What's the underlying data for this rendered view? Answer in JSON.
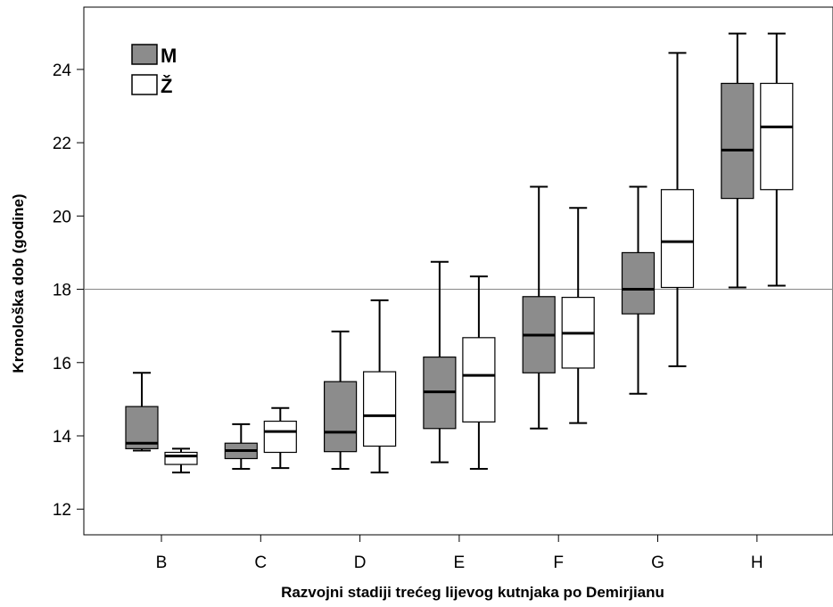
{
  "chart_data": {
    "type": "boxplot",
    "xlabel": "Razvojni stadiji trećeg lijevog kutnjaka po Demirjianu",
    "ylabel": "Kronološka dob (godine)",
    "ylim": [
      11.3,
      25.7
    ],
    "yticks": [
      12,
      14,
      16,
      18,
      20,
      22,
      24
    ],
    "reference_line": 18,
    "legend_position": "top-left",
    "categories": [
      "B",
      "C",
      "D",
      "E",
      "F",
      "G",
      "H"
    ],
    "series": [
      {
        "name": "M",
        "color": "#8c8c8c",
        "boxes": [
          {
            "min": 13.6,
            "q1": 13.65,
            "median": 13.8,
            "q3": 14.8,
            "max": 15.72
          },
          {
            "min": 13.1,
            "q1": 13.38,
            "median": 13.6,
            "q3": 13.8,
            "max": 14.32
          },
          {
            "min": 13.1,
            "q1": 13.57,
            "median": 14.1,
            "q3": 15.48,
            "max": 16.85
          },
          {
            "min": 13.28,
            "q1": 14.2,
            "median": 15.2,
            "q3": 16.15,
            "max": 18.75
          },
          {
            "min": 14.2,
            "q1": 15.72,
            "median": 16.75,
            "q3": 17.8,
            "max": 20.8
          },
          {
            "min": 15.15,
            "q1": 17.33,
            "median": 18.0,
            "q3": 19.0,
            "max": 20.8
          },
          {
            "min": 18.05,
            "q1": 20.48,
            "median": 21.8,
            "q3": 23.62,
            "max": 24.98
          }
        ]
      },
      {
        "name": "Ž",
        "color": "#ffffff",
        "boxes": [
          {
            "min": 13.0,
            "q1": 13.22,
            "median": 13.45,
            "q3": 13.55,
            "max": 13.65
          },
          {
            "min": 13.12,
            "q1": 13.55,
            "median": 14.12,
            "q3": 14.4,
            "max": 14.76
          },
          {
            "min": 13.0,
            "q1": 13.72,
            "median": 14.55,
            "q3": 15.75,
            "max": 17.7
          },
          {
            "min": 13.1,
            "q1": 14.38,
            "median": 15.65,
            "q3": 16.68,
            "max": 18.35
          },
          {
            "min": 14.35,
            "q1": 15.85,
            "median": 16.8,
            "q3": 17.78,
            "max": 20.22
          },
          {
            "min": 15.9,
            "q1": 18.05,
            "median": 19.3,
            "q3": 20.72,
            "max": 24.45
          },
          {
            "min": 18.1,
            "q1": 20.72,
            "median": 22.43,
            "q3": 23.62,
            "max": 24.98
          }
        ]
      }
    ]
  }
}
